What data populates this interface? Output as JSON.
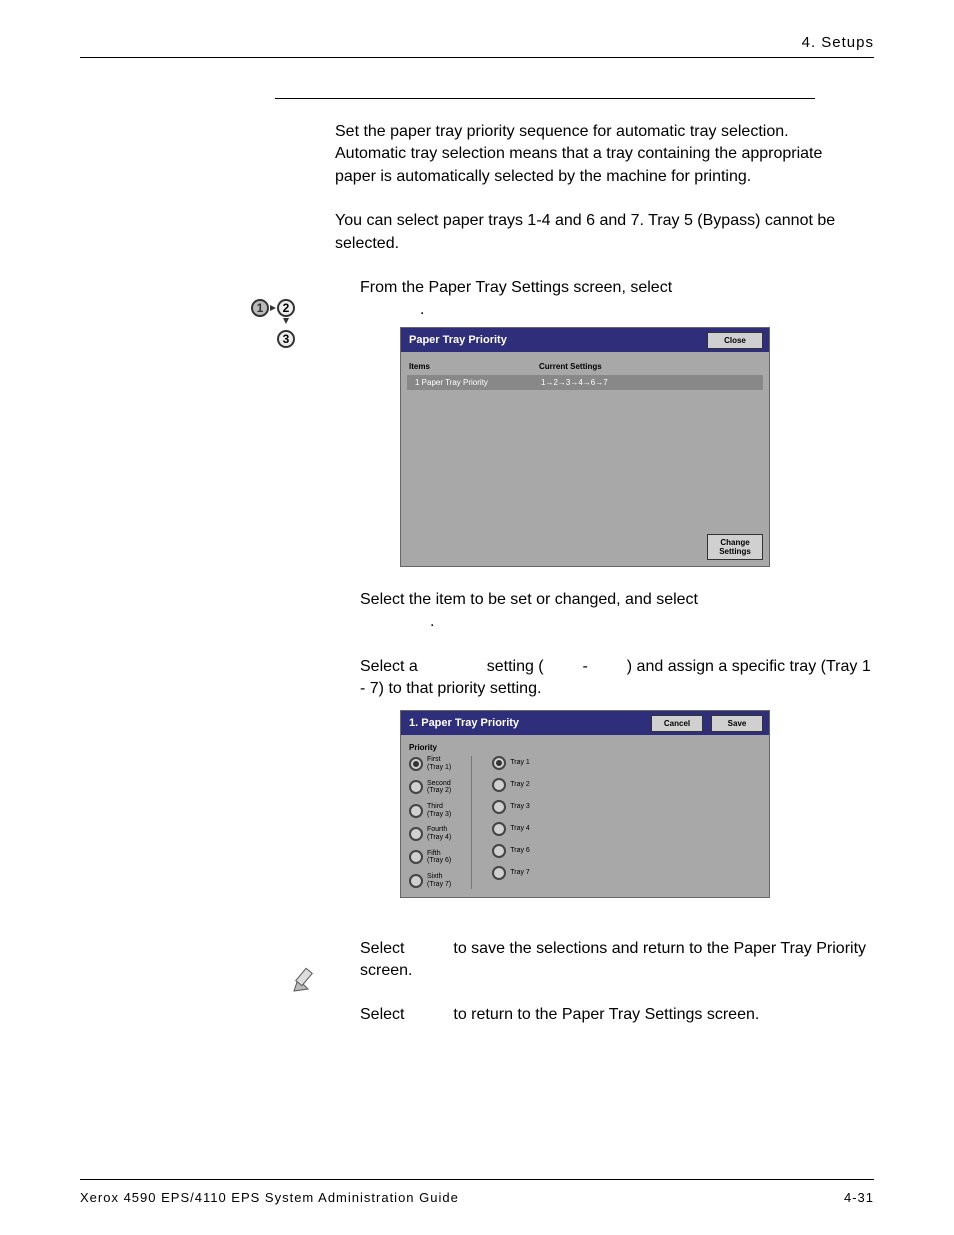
{
  "header": {
    "section": "4. Setups"
  },
  "intro": {
    "p1": "Set the paper tray priority sequence for automatic tray selection.  Automatic tray selection means that a tray containing the appropriate paper is automatically selected by the machine for printing.",
    "p2": "You can select paper trays 1-4 and 6 and 7. Tray 5 (Bypass) cannot be selected."
  },
  "step1": {
    "lead": "From the Paper Tray Settings screen, select",
    "tail": "."
  },
  "dialog1": {
    "title": "Paper Tray Priority",
    "close": "Close",
    "h_items": "Items",
    "h_settings": "Current Settings",
    "row_item": "1 Paper Tray Priority",
    "row_value": "1→2→3→4→6→7",
    "change": "Change Settings"
  },
  "between": {
    "p1a": "Select the item to be set or changed, and select",
    "p1b": ".",
    "p2a": "Select a ",
    "p2b": " setting (",
    "p2c": " - ",
    "p2d": ") and assign a specific tray (Tray 1 - 7) to that priority setting."
  },
  "dialog2": {
    "title": "1. Paper Tray Priority",
    "cancel": "Cancel",
    "save": "Save",
    "priority_label": "Priority",
    "left": [
      {
        "l1": "First",
        "l2": "(Tray 1)",
        "sel": true
      },
      {
        "l1": "Second",
        "l2": "(Tray 2)",
        "sel": false
      },
      {
        "l1": "Third",
        "l2": "(Tray 3)",
        "sel": false
      },
      {
        "l1": "Fourth",
        "l2": "(Tray 4)",
        "sel": false
      },
      {
        "l1": "Fifth",
        "l2": "(Tray 6)",
        "sel": false
      },
      {
        "l1": "Sixth",
        "l2": "(Tray 7)",
        "sel": false
      }
    ],
    "right": [
      {
        "l1": "Tray 1",
        "sel": true
      },
      {
        "l1": "Tray 2",
        "sel": false
      },
      {
        "l1": "Tray 3",
        "sel": false
      },
      {
        "l1": "Tray 4",
        "sel": false
      },
      {
        "l1": "Tray 6",
        "sel": false
      },
      {
        "l1": "Tray 7",
        "sel": false
      }
    ]
  },
  "closing": {
    "p1a": "Select ",
    "p1b": " to save the selections and return to the Paper Tray Priority screen.",
    "p2a": "Select ",
    "p2b": " to return to the Paper Tray Settings screen."
  },
  "footer": {
    "left": "Xerox 4590 EPS/4110 EPS System Administration Guide",
    "right": "4-31"
  },
  "colors": {
    "dialog_bg": "#a8a8a8",
    "titlebar_bg": "#2e2e7a",
    "row_bg": "#888888"
  }
}
